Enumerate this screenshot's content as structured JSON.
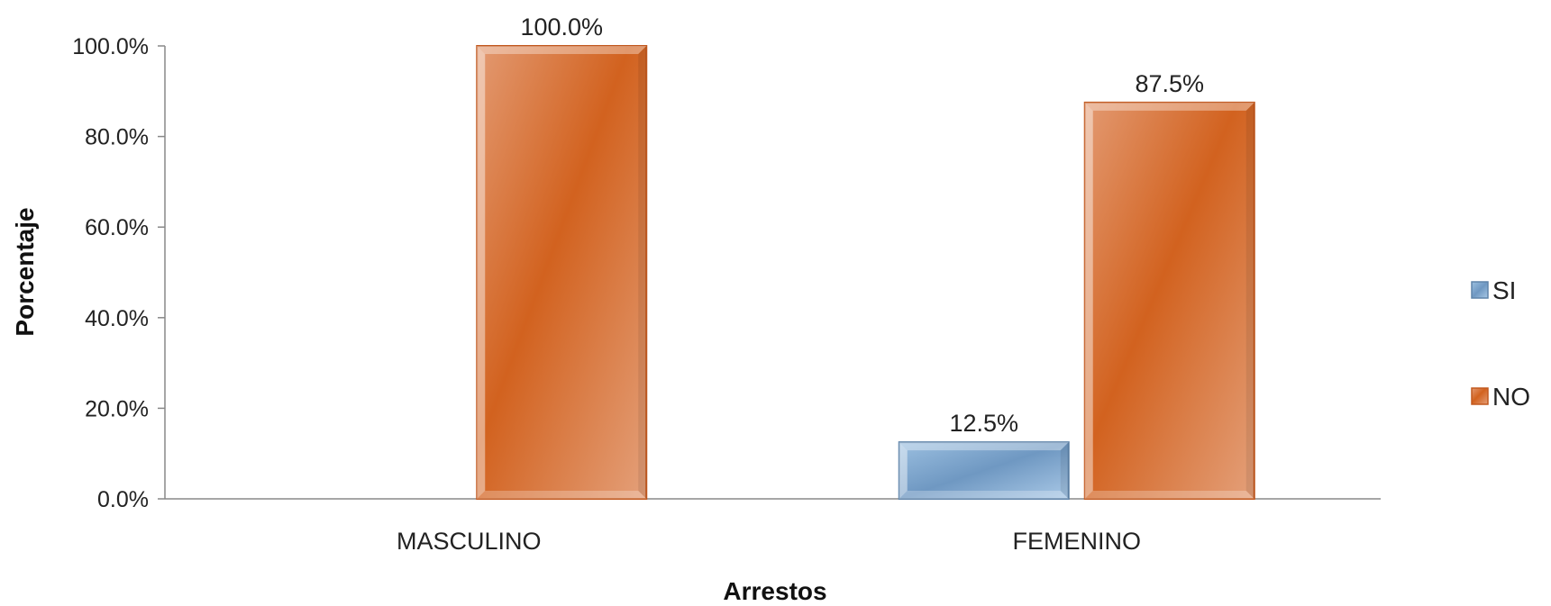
{
  "chart_data": {
    "type": "bar",
    "categories": [
      "MASCULINO",
      "FEMENINO"
    ],
    "series": [
      {
        "name": "SI",
        "values": [
          null,
          12.5
        ],
        "labels": [
          "",
          "12.5%"
        ],
        "color": "#7fa8cf"
      },
      {
        "name": "NO",
        "values": [
          100.0,
          87.5
        ],
        "labels": [
          "100.0%",
          "87.5%"
        ],
        "color": "#d96a2b"
      }
    ],
    "ylim": [
      0,
      100
    ],
    "yticks": [
      0,
      20,
      40,
      60,
      80,
      100
    ],
    "ytick_labels": [
      "0.0%",
      "20.0%",
      "40.0%",
      "60.0%",
      "80.0%",
      "100.0%"
    ],
    "xlabel": "Arrestos",
    "ylabel": "Porcentaje",
    "grid": false,
    "legend_position": "right"
  }
}
